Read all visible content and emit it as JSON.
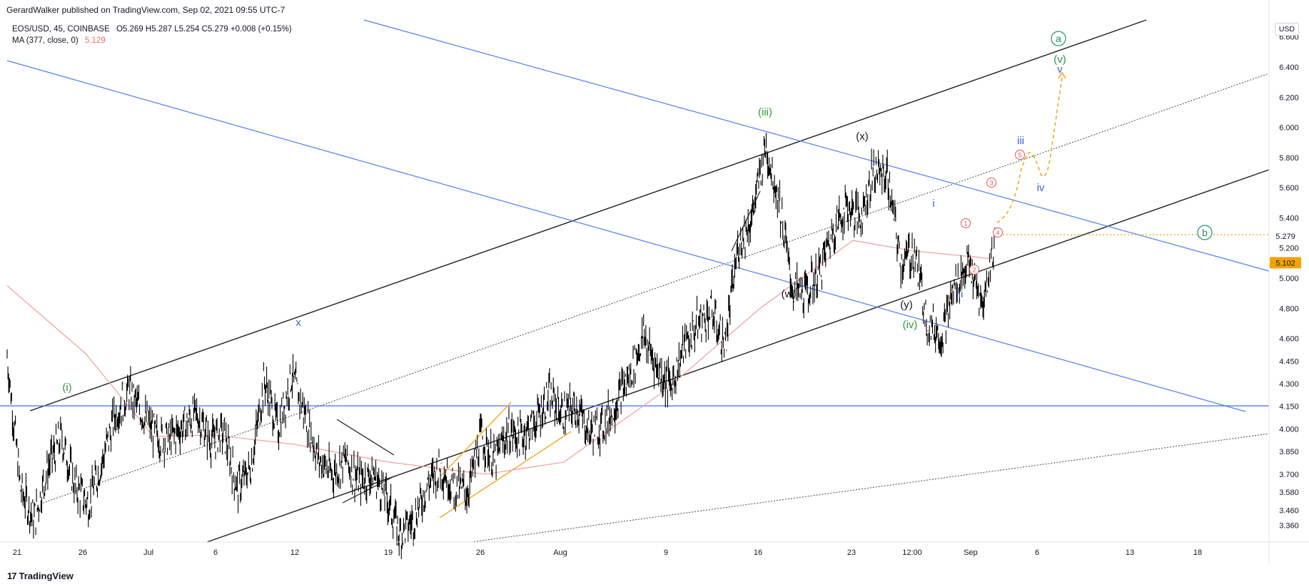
{
  "header": {
    "published": "GerardWalker published on TradingView.com, Sep 02, 2021 09:55 UTC-7",
    "symbol": "EOS/USD, 45, COINBASE",
    "open": "O5.269",
    "high": "H5.287",
    "low": "L5.254",
    "close": "C5.279",
    "change": "+0.008 (+0.15%)",
    "ma_label": "MA (377, close, 0)",
    "ma_value": "5.129",
    "currency": "USD"
  },
  "footer": {
    "brand": "TradingView",
    "logo": "17"
  },
  "colors": {
    "candle": "#000000",
    "ma": "#f4a3a3",
    "channel_black": "#1f1f1f",
    "channel_blue": "#4f7ef0",
    "horizontal_blue": "#3d6fe8",
    "orange": "#f5a623",
    "wave_green": "#2e9c3a",
    "wave_blue": "#3465d9",
    "wave_red": "#e05555",
    "circle_teal": "#1f8f6b",
    "price_tag": "#f5a300"
  },
  "chart_data": {
    "type": "line",
    "title": "EOS/USD, 45, COINBASE",
    "ylim": [
      3.25,
      6.75
    ],
    "y_ticks": [
      "6.600",
      "6.400",
      "6.200",
      "6.000",
      "5.800",
      "5.600",
      "5.400",
      "5.200",
      "5.000",
      "4.800",
      "4.600",
      "4.450",
      "4.300",
      "4.150",
      "4.000",
      "3.850",
      "3.700",
      "3.580",
      "3.460",
      "3.360"
    ],
    "x_ticks": [
      "21",
      "26",
      "Jul",
      "6",
      "12",
      "19",
      "26",
      "Aug",
      "9",
      "16",
      "23",
      "12:00",
      "Sep",
      "6",
      "13",
      "18"
    ],
    "last_price": "5.279",
    "marked_level": "5.102",
    "series": [
      {
        "name": "EOS/USD",
        "points": [
          [
            "21",
            4.48
          ],
          [
            "22",
            3.6
          ],
          [
            "23",
            3.4
          ],
          [
            "24",
            3.74
          ],
          [
            "25",
            3.95
          ],
          [
            "26",
            3.62
          ],
          [
            "27",
            3.5
          ],
          [
            "28",
            3.78
          ],
          [
            "29",
            4.1
          ],
          [
            "30",
            4.25
          ],
          [
            "Jul 1",
            4.1
          ],
          [
            "Jul 2",
            3.95
          ],
          [
            "Jul 3",
            3.93
          ],
          [
            "Jul 4",
            4.02
          ],
          [
            "Jul 5",
            4.1
          ],
          [
            "Jul 6",
            3.92
          ],
          [
            "Jul 7",
            3.98
          ],
          [
            "Jul 8",
            3.6
          ],
          [
            "Jul 9",
            3.75
          ],
          [
            "Jul 10",
            4.32
          ],
          [
            "Jul 11",
            4.0
          ],
          [
            "Jul 12",
            4.35
          ],
          [
            "Jul 13",
            4.1
          ],
          [
            "Jul 14",
            3.8
          ],
          [
            "Jul 15",
            3.7
          ],
          [
            "Jul 16",
            3.8
          ],
          [
            "Jul 17",
            3.65
          ],
          [
            "Jul 18",
            3.7
          ],
          [
            "Jul 19",
            3.55
          ],
          [
            "Jul 20",
            3.3
          ],
          [
            "Jul 21",
            3.4
          ],
          [
            "Jul 22",
            3.62
          ],
          [
            "Jul 23",
            3.75
          ],
          [
            "Jul 24",
            3.62
          ],
          [
            "Jul 25",
            3.58
          ],
          [
            "Jul 26",
            3.95
          ],
          [
            "Jul 27",
            3.78
          ],
          [
            "Jul 28",
            3.98
          ],
          [
            "Jul 29",
            3.95
          ],
          [
            "Jul 30",
            4.05
          ],
          [
            "Jul 31",
            4.22
          ],
          [
            "Aug 1",
            4.1
          ],
          [
            "Aug 2",
            4.15
          ],
          [
            "Aug 3",
            3.98
          ],
          [
            "Aug 4",
            4.02
          ],
          [
            "Aug 5",
            4.18
          ],
          [
            "Aug 6",
            4.36
          ],
          [
            "Aug 7",
            4.62
          ],
          [
            "Aug 8",
            4.4
          ],
          [
            "Aug 9",
            4.28
          ],
          [
            "Aug 10",
            4.55
          ],
          [
            "Aug 11",
            4.7
          ],
          [
            "Aug 12",
            4.78
          ],
          [
            "Aug 13",
            4.55
          ],
          [
            "Aug 14",
            5.22
          ],
          [
            "Aug 15",
            5.4
          ],
          [
            "Aug 16",
            5.88
          ],
          [
            "Aug 17",
            5.52
          ],
          [
            "Aug 18",
            4.92
          ],
          [
            "Aug 19",
            4.9
          ],
          [
            "Aug 20",
            5.05
          ],
          [
            "Aug 21",
            5.32
          ],
          [
            "Aug 22",
            5.48
          ],
          [
            "Aug 23",
            5.4
          ],
          [
            "Aug 24",
            5.72
          ],
          [
            "Aug 25",
            5.68
          ],
          [
            "Aug 26",
            5.1
          ],
          [
            "Aug 27",
            5.18
          ],
          [
            "Aug 28",
            4.7
          ],
          [
            "Aug 29",
            4.62
          ],
          [
            "Aug 30",
            4.95
          ],
          [
            "Aug 31",
            5.1
          ],
          [
            "Sep 1",
            4.8
          ],
          [
            "Sep 2",
            5.279
          ]
        ]
      },
      {
        "name": "MA (377, close, 0)",
        "points": [
          [
            "21",
            4.95
          ],
          [
            "26",
            4.5
          ],
          [
            "Jul",
            3.95
          ],
          [
            "6",
            3.96
          ],
          [
            "12",
            3.9
          ],
          [
            "19",
            3.78
          ],
          [
            "26",
            3.7
          ],
          [
            "Aug",
            3.78
          ],
          [
            "9",
            4.25
          ],
          [
            "16",
            4.8
          ],
          [
            "23",
            5.25
          ],
          [
            "12:00",
            5.18
          ],
          [
            "Sep",
            5.129
          ]
        ]
      }
    ],
    "wave_labels": {
      "green": [
        "(i)",
        "(iii)",
        "(iv)",
        "(v)"
      ],
      "blue": [
        "x",
        "i",
        "ii",
        "iii",
        "iv",
        "v"
      ],
      "black": [
        "(w)",
        "(x)",
        "(y)"
      ],
      "red_circled": [
        "1",
        "2",
        "3",
        "4",
        "5"
      ],
      "teal_circled": [
        "a",
        "b"
      ]
    },
    "grid": false
  }
}
